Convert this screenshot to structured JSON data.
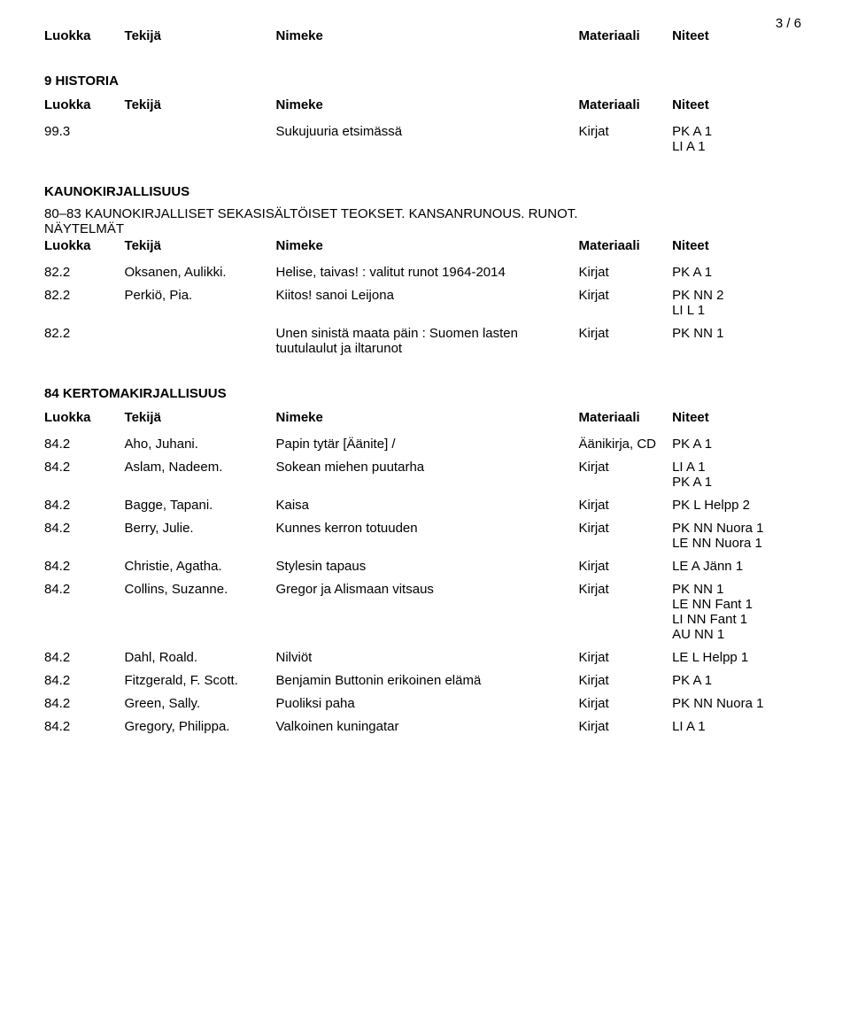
{
  "page_number": "3 / 6",
  "column_headers": {
    "luokka": "Luokka",
    "tekija": "Tekijä",
    "nimeke": "Nimeke",
    "materiaali": "Materiaali",
    "niteet": "Niteet"
  },
  "sections": [
    {
      "show_header_above": true,
      "heading": "9 HISTORIA",
      "preamble_lines": [],
      "show_header_below": true,
      "rows": [
        {
          "luokka": "99.3",
          "tekija": "",
          "nimeke": "Sukujuuria etsimässä",
          "materiaali": "Kirjat",
          "niteet": [
            "PK A 1",
            "LI A 1"
          ]
        }
      ]
    },
    {
      "show_header_above": false,
      "heading": "KAUNOKIRJALLISUUS",
      "preamble_lines": [
        "80–83 KAUNOKIRJALLISET SEKASISÄLTÖISET TEOKSET. KANSANRUNOUS. RUNOT.",
        "NÄYTELMÄT"
      ],
      "show_header_below": true,
      "rows": [
        {
          "luokka": "82.2",
          "tekija": "Oksanen, Aulikki.",
          "nimeke": "Helise, taivas! : valitut runot 1964-2014",
          "materiaali": "Kirjat",
          "niteet": [
            "PK A 1"
          ]
        },
        {
          "luokka": "82.2",
          "tekija": "Perkiö, Pia.",
          "nimeke": "Kiitos! sanoi Leijona",
          "materiaali": "Kirjat",
          "niteet": [
            "PK NN 2",
            "LI L 1"
          ]
        },
        {
          "luokka": "82.2",
          "tekija": "",
          "nimeke": "Unen sinistä maata päin : Suomen lasten tuutulaulut ja iltarunot",
          "materiaali": "Kirjat",
          "niteet": [
            "PK NN 1"
          ]
        }
      ]
    },
    {
      "show_header_above": false,
      "heading": "84 KERTOMAKIRJALLISUUS",
      "preamble_lines": [],
      "show_header_below": true,
      "rows": [
        {
          "luokka": "84.2",
          "tekija": "Aho, Juhani.",
          "nimeke": "Papin tytär [Äänite] /",
          "materiaali": "Äänikirja, CD",
          "niteet": [
            "PK A 1"
          ]
        },
        {
          "luokka": "84.2",
          "tekija": "Aslam, Nadeem.",
          "nimeke": "Sokean miehen puutarha",
          "materiaali": "Kirjat",
          "niteet": [
            "LI A 1",
            "PK A 1"
          ]
        },
        {
          "luokka": "84.2",
          "tekija": "Bagge, Tapani.",
          "nimeke": "Kaisa",
          "materiaali": "Kirjat",
          "niteet": [
            "PK L Helpp 2"
          ]
        },
        {
          "luokka": "84.2",
          "tekija": "Berry, Julie.",
          "nimeke": "Kunnes kerron totuuden",
          "materiaali": "Kirjat",
          "niteet": [
            "PK NN Nuora 1",
            "LE NN Nuora 1"
          ]
        },
        {
          "luokka": "84.2",
          "tekija": "Christie, Agatha.",
          "nimeke": "Stylesin tapaus",
          "materiaali": "Kirjat",
          "niteet": [
            "LE A Jänn 1"
          ]
        },
        {
          "luokka": "84.2",
          "tekija": "Collins, Suzanne.",
          "nimeke": "Gregor ja Alismaan vitsaus",
          "materiaali": "Kirjat",
          "niteet": [
            "PK NN 1",
            "LE NN Fant 1",
            "LI NN Fant 1",
            "AU NN 1"
          ]
        },
        {
          "luokka": "84.2",
          "tekija": "Dahl, Roald.",
          "nimeke": "Nilviöt",
          "materiaali": "Kirjat",
          "niteet": [
            "LE L Helpp 1"
          ]
        },
        {
          "luokka": "84.2",
          "tekija": "Fitzgerald, F. Scott.",
          "nimeke": "Benjamin Buttonin erikoinen elämä",
          "materiaali": "Kirjat",
          "niteet": [
            "PK A 1"
          ]
        },
        {
          "luokka": "84.2",
          "tekija": "Green, Sally.",
          "nimeke": "Puoliksi paha",
          "materiaali": "Kirjat",
          "niteet": [
            "PK NN Nuora 1"
          ]
        },
        {
          "luokka": "84.2",
          "tekija": "Gregory, Philippa.",
          "nimeke": "Valkoinen kuningatar",
          "materiaali": "Kirjat",
          "niteet": [
            "LI A 1"
          ]
        }
      ]
    }
  ]
}
